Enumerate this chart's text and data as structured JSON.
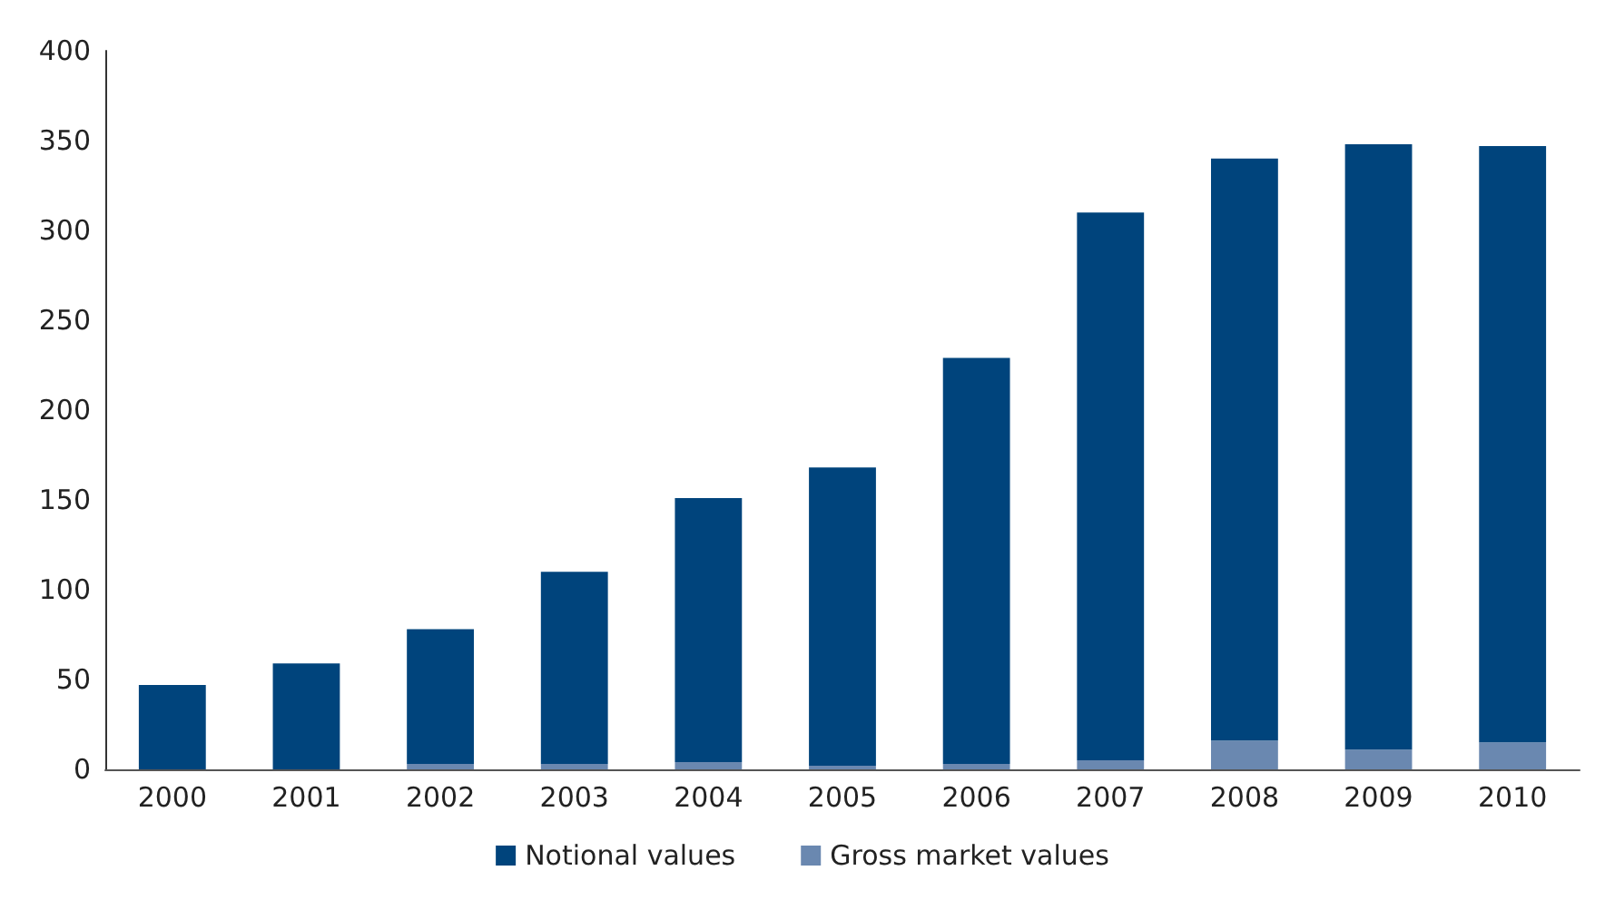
{
  "chart_data": {
    "type": "bar",
    "stacked": true,
    "categories": [
      "2000",
      "2001",
      "2002",
      "2003",
      "2004",
      "2005",
      "2006",
      "2007",
      "2008",
      "2009",
      "2010"
    ],
    "series": [
      {
        "name": "Gross market values",
        "color": "#6a88b0",
        "values": [
          0,
          0,
          3,
          3,
          4,
          2,
          3,
          5,
          16,
          11,
          15
        ]
      },
      {
        "name": "Notional values",
        "color": "#00447c",
        "values": [
          47,
          59,
          75,
          107,
          147,
          166,
          226,
          305,
          324,
          337,
          332
        ]
      }
    ],
    "ylim": [
      0,
      400
    ],
    "yticks": [
      0,
      50,
      100,
      150,
      200,
      250,
      300,
      350,
      400
    ],
    "grid": false,
    "legend": "bottom"
  }
}
